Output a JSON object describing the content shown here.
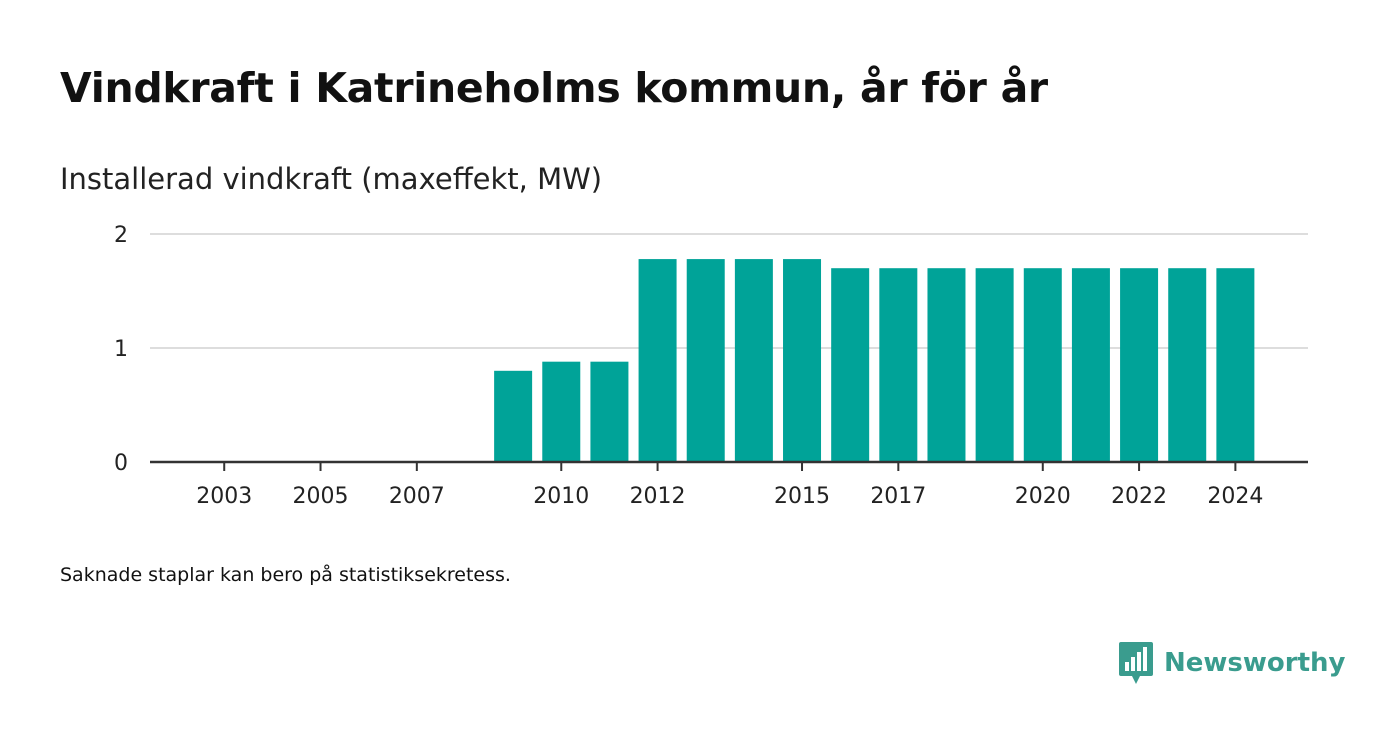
{
  "title": "Vindkraft i Katrineholms kommun, år för år",
  "subtitle": "Installerad vindkraft (maxeffekt, MW)",
  "footnote": "Saknade staplar kan bero på statistiksekretess.",
  "brand": {
    "name": "Newsworthy",
    "color": "#3a9c8e"
  },
  "colors": {
    "bar": "#00a398",
    "grid": "#dddddd",
    "axis": "#333333"
  },
  "chart_data": {
    "type": "bar",
    "title": "Vindkraft i Katrineholms kommun, år för år",
    "subtitle": "Installerad vindkraft (maxeffekt, MW)",
    "xlabel": "",
    "ylabel": "",
    "ylim": [
      0,
      2
    ],
    "yticks": [
      0,
      1,
      2
    ],
    "grid": true,
    "categories": [
      2002,
      2003,
      2004,
      2005,
      2006,
      2007,
      2008,
      2009,
      2010,
      2011,
      2012,
      2013,
      2014,
      2015,
      2016,
      2017,
      2018,
      2019,
      2020,
      2021,
      2022,
      2023,
      2024
    ],
    "values": [
      0,
      0,
      0,
      0,
      0,
      0,
      0,
      0.8,
      0.88,
      0.88,
      1.78,
      1.78,
      1.78,
      1.78,
      1.7,
      1.7,
      1.7,
      1.7,
      1.7,
      1.7,
      1.7,
      1.7,
      1.7
    ],
    "xtick_labels": [
      "2003",
      "2005",
      "2007",
      "2010",
      "2012",
      "2015",
      "2017",
      "2020",
      "2022",
      "2024"
    ]
  }
}
